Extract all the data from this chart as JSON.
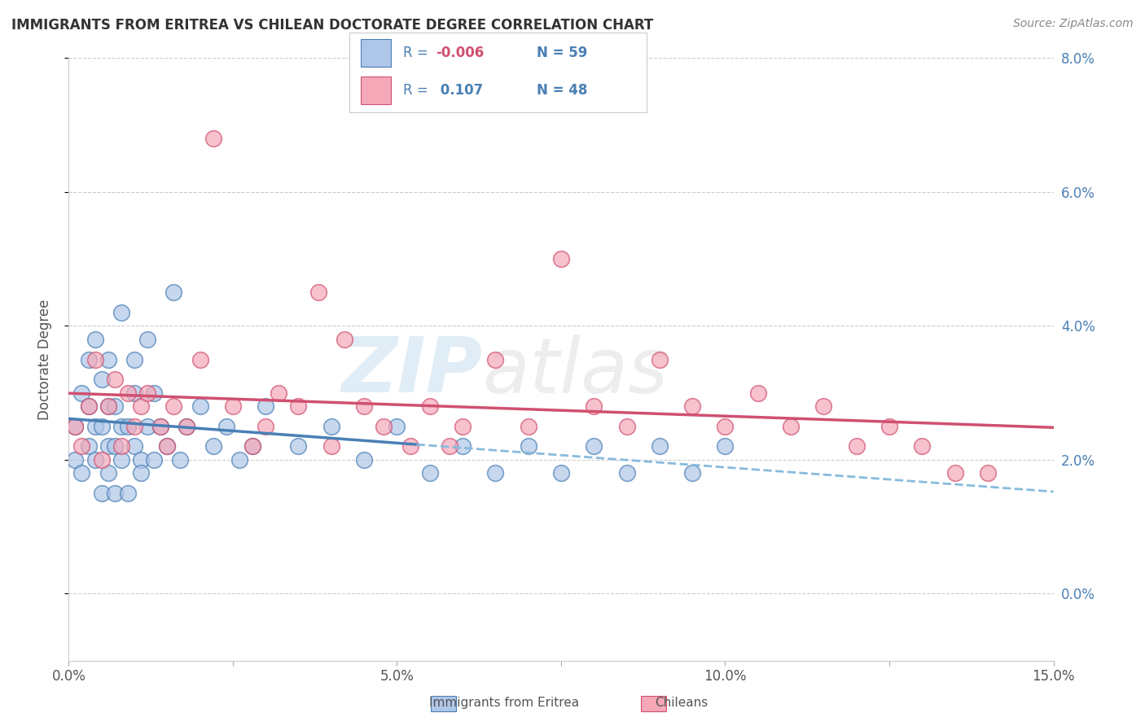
{
  "title": "IMMIGRANTS FROM ERITREA VS CHILEAN DOCTORATE DEGREE CORRELATION CHART",
  "source_text": "Source: ZipAtlas.com",
  "ylabel": "Doctorate Degree",
  "xlim": [
    0.0,
    0.15
  ],
  "ylim": [
    -0.01,
    0.08
  ],
  "yticks_right": [
    0.0,
    0.02,
    0.04,
    0.06,
    0.08
  ],
  "yticklabels_right": [
    "0.0%",
    "2.0%",
    "4.0%",
    "6.0%",
    "8.0%"
  ],
  "color_blue": "#aec6e8",
  "color_pink": "#f4a8b8",
  "trendline_blue": "#4a7fb5",
  "trendline_pink": "#d05070",
  "trendline_blue_dash": "#88bbdd",
  "gridline_color": "#cccccc",
  "background_color": "#ffffff",
  "watermark_zip": "ZIP",
  "watermark_atlas": "atlas",
  "legend_color": "#4a7fb5",
  "legend_r_color": "#d05070",
  "blue_x": [
    0.001,
    0.001,
    0.002,
    0.002,
    0.003,
    0.003,
    0.003,
    0.004,
    0.004,
    0.004,
    0.005,
    0.005,
    0.005,
    0.006,
    0.006,
    0.006,
    0.006,
    0.007,
    0.007,
    0.007,
    0.008,
    0.008,
    0.008,
    0.009,
    0.009,
    0.01,
    0.01,
    0.01,
    0.011,
    0.011,
    0.012,
    0.012,
    0.013,
    0.013,
    0.014,
    0.015,
    0.016,
    0.017,
    0.018,
    0.02,
    0.022,
    0.024,
    0.026,
    0.028,
    0.03,
    0.035,
    0.04,
    0.045,
    0.05,
    0.055,
    0.06,
    0.065,
    0.07,
    0.075,
    0.08,
    0.085,
    0.09,
    0.095,
    0.1
  ],
  "blue_y": [
    0.025,
    0.02,
    0.03,
    0.018,
    0.035,
    0.022,
    0.028,
    0.02,
    0.038,
    0.025,
    0.015,
    0.025,
    0.032,
    0.022,
    0.028,
    0.018,
    0.035,
    0.022,
    0.028,
    0.015,
    0.042,
    0.02,
    0.025,
    0.015,
    0.025,
    0.03,
    0.035,
    0.022,
    0.02,
    0.018,
    0.025,
    0.038,
    0.02,
    0.03,
    0.025,
    0.022,
    0.045,
    0.02,
    0.025,
    0.028,
    0.022,
    0.025,
    0.02,
    0.022,
    0.028,
    0.022,
    0.025,
    0.02,
    0.025,
    0.018,
    0.022,
    0.018,
    0.022,
    0.018,
    0.022,
    0.018,
    0.022,
    0.018,
    0.022
  ],
  "pink_x": [
    0.001,
    0.002,
    0.003,
    0.004,
    0.005,
    0.006,
    0.007,
    0.008,
    0.009,
    0.01,
    0.011,
    0.012,
    0.014,
    0.015,
    0.016,
    0.018,
    0.02,
    0.022,
    0.025,
    0.028,
    0.03,
    0.032,
    0.035,
    0.038,
    0.04,
    0.042,
    0.045,
    0.048,
    0.052,
    0.055,
    0.058,
    0.06,
    0.065,
    0.07,
    0.075,
    0.08,
    0.085,
    0.09,
    0.095,
    0.1,
    0.105,
    0.11,
    0.115,
    0.12,
    0.125,
    0.13,
    0.135,
    0.14
  ],
  "pink_y": [
    0.025,
    0.022,
    0.028,
    0.035,
    0.02,
    0.028,
    0.032,
    0.022,
    0.03,
    0.025,
    0.028,
    0.03,
    0.025,
    0.022,
    0.028,
    0.025,
    0.035,
    0.068,
    0.028,
    0.022,
    0.025,
    0.03,
    0.028,
    0.045,
    0.022,
    0.038,
    0.028,
    0.025,
    0.022,
    0.028,
    0.022,
    0.025,
    0.035,
    0.025,
    0.05,
    0.028,
    0.025,
    0.035,
    0.028,
    0.025,
    0.03,
    0.025,
    0.028,
    0.022,
    0.025,
    0.022,
    0.018,
    0.018
  ]
}
